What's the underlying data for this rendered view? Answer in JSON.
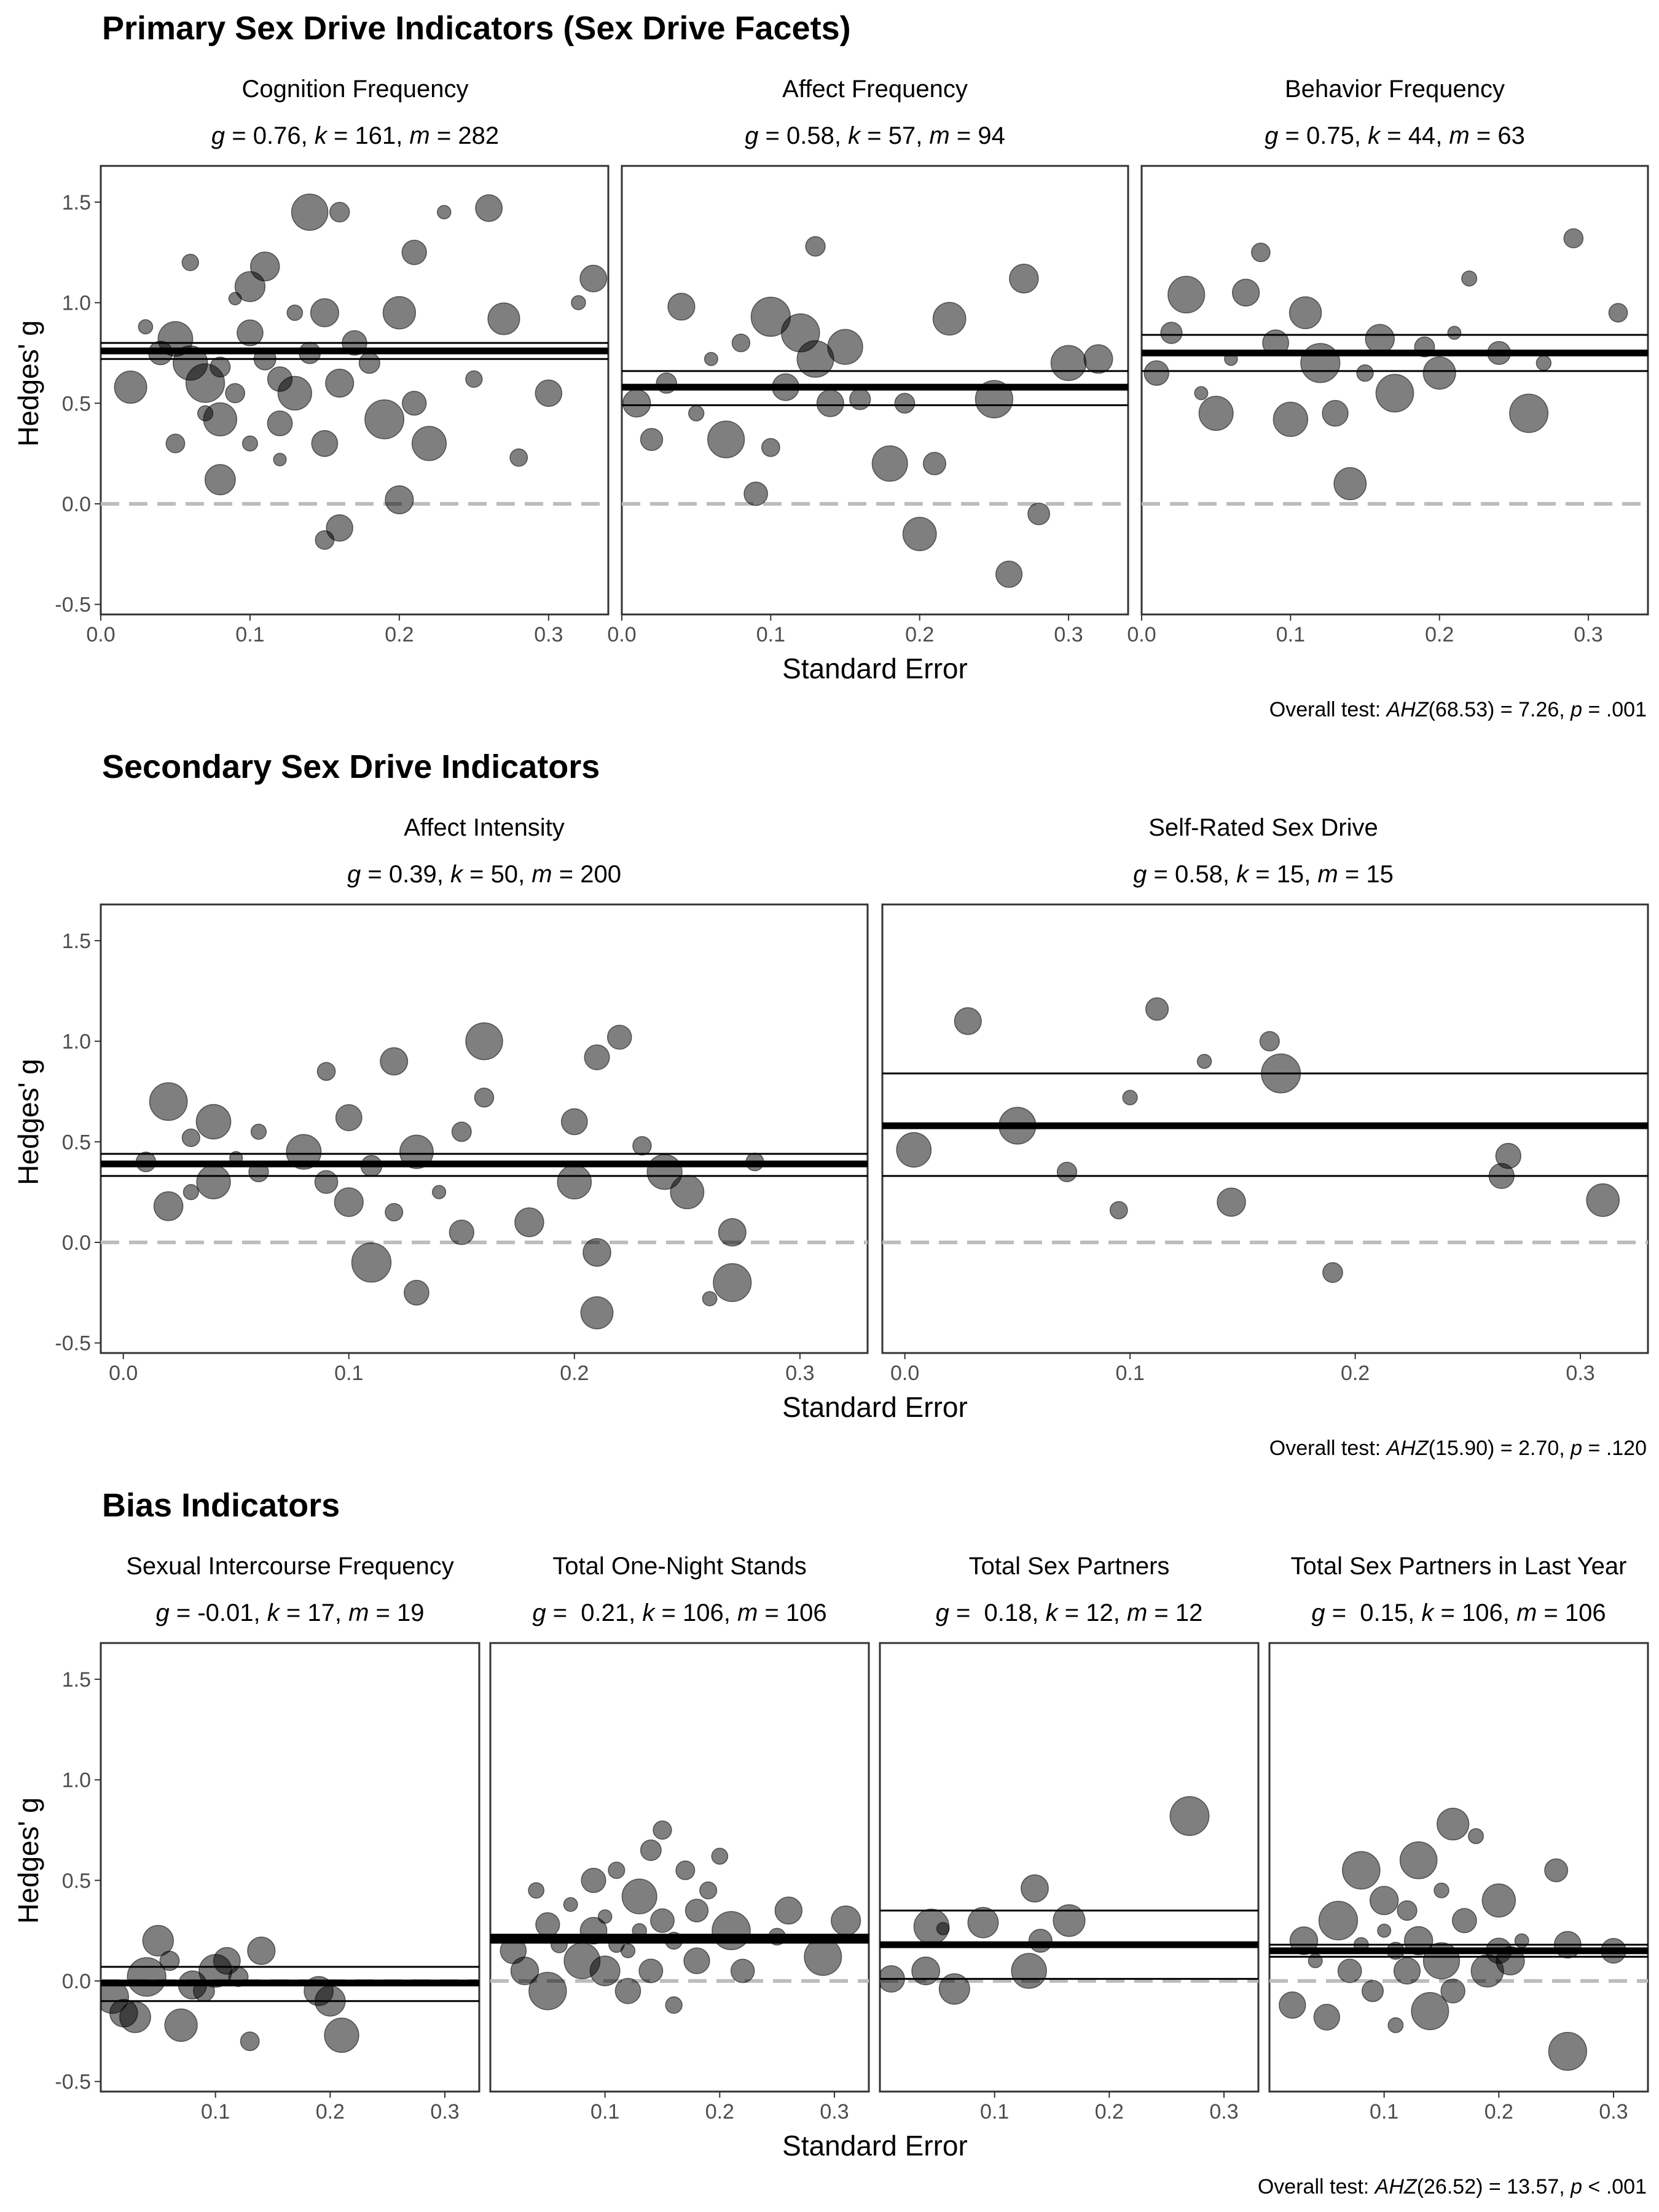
{
  "sections": [
    {
      "title": "Primary Sex Drive Indicators (Sex Drive Facets)",
      "xlabel": "Standard Error",
      "ylabel": "Hedges' g",
      "overall_test": {
        "prefix": "Overall test: ",
        "stat": "AHZ",
        "rest": "(68.53) = 7.26, ",
        "p": "p",
        "ptext": " = .001"
      },
      "x_ticks": [
        "0.0",
        "0.1",
        "0.2",
        "0.3"
      ],
      "panels": [
        {
          "title": "Cognition Frequency",
          "stats": {
            "g": "0.76",
            "k": "161",
            "m": "282"
          }
        },
        {
          "title": "Affect Frequency",
          "stats": {
            "g": "0.58",
            "k": "57",
            "m": "94"
          }
        },
        {
          "title": "Behavior Frequency",
          "stats": {
            "g": "0.75",
            "k": "44",
            "m": "63"
          }
        }
      ]
    },
    {
      "title": "Secondary Sex Drive Indicators",
      "xlabel": "Standard Error",
      "ylabel": "Hedges' g",
      "overall_test": {
        "prefix": "Overall test: ",
        "stat": "AHZ",
        "rest": "(15.90) = 2.70, ",
        "p": "p",
        "ptext": " = .120"
      },
      "x_ticks": [
        "0.0",
        "0.1",
        "0.2",
        "0.3"
      ],
      "panels": [
        {
          "title": "Affect Intensity",
          "stats": {
            "g": "0.39",
            "k": "50",
            "m": "200"
          }
        },
        {
          "title": "Self-Rated Sex Drive",
          "stats": {
            "g": "0.58",
            "k": "15",
            "m": "15"
          }
        }
      ]
    },
    {
      "title": "Bias Indicators",
      "xlabel": "Standard Error",
      "ylabel": "Hedges' g",
      "overall_test": {
        "prefix": "Overall test: ",
        "stat": "AHZ",
        "rest": "(26.52) = 13.57, ",
        "p": "p",
        "ptext": " < .001"
      },
      "x_ticks": [
        "0.1",
        "0.2",
        "0.3"
      ],
      "panels": [
        {
          "title": "Sexual Intercourse Frequency",
          "stats": {
            "g": "-0.01",
            "k": "17",
            "m": "19"
          }
        },
        {
          "title": "Total One-Night Stands",
          "stats": {
            "g": " 0.21",
            "k": "106",
            "m": "106"
          }
        },
        {
          "title": "Total Sex Partners",
          "stats": {
            "g": " 0.18",
            "k": "12",
            "m": "12"
          }
        },
        {
          "title": "Total Sex Partners in Last Year",
          "stats": {
            "g": " 0.15",
            "k": "106",
            "m": "106"
          }
        }
      ]
    }
  ],
  "y_ticks": [
    "-0.5",
    "0.0",
    "0.5",
    "1.0",
    "1.5"
  ],
  "colors": {
    "point": "#000000",
    "zero_line": "#bdbdbd",
    "frame": "#333333"
  },
  "chart_data": [
    {
      "type": "scatter",
      "title": "Cognition Frequency",
      "xlabel": "Standard Error",
      "ylabel": "Hedges' g",
      "xlim": [
        0,
        0.34
      ],
      "ylim": [
        -0.55,
        1.68
      ],
      "estimate": 0.76,
      "ci": [
        0.72,
        0.8
      ],
      "reference_line": 0,
      "points": [
        [
          0.02,
          0.58
        ],
        [
          0.03,
          0.88
        ],
        [
          0.04,
          0.75
        ],
        [
          0.05,
          0.82
        ],
        [
          0.06,
          1.2
        ],
        [
          0.06,
          0.7
        ],
        [
          0.07,
          0.45
        ],
        [
          0.07,
          0.6
        ],
        [
          0.08,
          0.68
        ],
        [
          0.08,
          0.42
        ],
        [
          0.09,
          1.02
        ],
        [
          0.09,
          0.55
        ],
        [
          0.1,
          1.08
        ],
        [
          0.1,
          0.85
        ],
        [
          0.1,
          0.3
        ],
        [
          0.11,
          0.72
        ],
        [
          0.11,
          1.18
        ],
        [
          0.12,
          0.62
        ],
        [
          0.12,
          0.4
        ],
        [
          0.13,
          0.95
        ],
        [
          0.13,
          0.55
        ],
        [
          0.14,
          1.45
        ],
        [
          0.14,
          0.75
        ],
        [
          0.15,
          0.3
        ],
        [
          0.15,
          0.95
        ],
        [
          0.16,
          1.45
        ],
        [
          0.16,
          0.6
        ],
        [
          0.16,
          -0.12
        ],
        [
          0.17,
          0.8
        ],
        [
          0.18,
          0.7
        ],
        [
          0.19,
          0.42
        ],
        [
          0.2,
          0.95
        ],
        [
          0.2,
          0.02
        ],
        [
          0.21,
          1.25
        ],
        [
          0.21,
          0.5
        ],
        [
          0.22,
          0.3
        ],
        [
          0.23,
          1.45
        ],
        [
          0.25,
          0.62
        ],
        [
          0.26,
          1.47
        ],
        [
          0.27,
          0.92
        ],
        [
          0.28,
          0.23
        ],
        [
          0.3,
          0.55
        ],
        [
          0.32,
          1.0
        ],
        [
          0.33,
          1.12
        ],
        [
          0.05,
          0.3
        ],
        [
          0.08,
          0.12
        ],
        [
          0.12,
          0.22
        ],
        [
          0.15,
          -0.18
        ]
      ]
    },
    {
      "type": "scatter",
      "title": "Affect Frequency",
      "xlabel": "Standard Error",
      "ylabel": "Hedges' g",
      "xlim": [
        0,
        0.34
      ],
      "ylim": [
        -0.55,
        1.68
      ],
      "estimate": 0.58,
      "ci": [
        0.49,
        0.66
      ],
      "reference_line": 0,
      "points": [
        [
          0.01,
          0.5
        ],
        [
          0.02,
          0.32
        ],
        [
          0.03,
          0.6
        ],
        [
          0.04,
          0.98
        ],
        [
          0.05,
          0.45
        ],
        [
          0.06,
          0.72
        ],
        [
          0.07,
          0.32
        ],
        [
          0.08,
          0.8
        ],
        [
          0.09,
          0.05
        ],
        [
          0.1,
          0.93
        ],
        [
          0.1,
          0.28
        ],
        [
          0.11,
          0.58
        ],
        [
          0.12,
          0.85
        ],
        [
          0.13,
          0.72
        ],
        [
          0.13,
          1.28
        ],
        [
          0.14,
          0.5
        ],
        [
          0.15,
          0.78
        ],
        [
          0.16,
          0.52
        ],
        [
          0.18,
          0.2
        ],
        [
          0.19,
          0.5
        ],
        [
          0.2,
          -0.15
        ],
        [
          0.21,
          0.2
        ],
        [
          0.22,
          0.92
        ],
        [
          0.25,
          0.52
        ],
        [
          0.26,
          -0.35
        ],
        [
          0.27,
          1.12
        ],
        [
          0.28,
          -0.05
        ],
        [
          0.3,
          0.7
        ],
        [
          0.32,
          0.72
        ]
      ]
    },
    {
      "type": "scatter",
      "title": "Behavior Frequency",
      "xlabel": "Standard Error",
      "ylabel": "Hedges' g",
      "xlim": [
        0,
        0.34
      ],
      "ylim": [
        -0.55,
        1.68
      ],
      "estimate": 0.75,
      "ci": [
        0.66,
        0.84
      ],
      "reference_line": 0,
      "points": [
        [
          0.01,
          0.65
        ],
        [
          0.02,
          0.85
        ],
        [
          0.03,
          1.04
        ],
        [
          0.04,
          0.55
        ],
        [
          0.05,
          0.45
        ],
        [
          0.06,
          0.72
        ],
        [
          0.07,
          1.05
        ],
        [
          0.08,
          1.25
        ],
        [
          0.09,
          0.8
        ],
        [
          0.1,
          0.42
        ],
        [
          0.11,
          0.95
        ],
        [
          0.12,
          0.7
        ],
        [
          0.13,
          0.45
        ],
        [
          0.14,
          0.1
        ],
        [
          0.15,
          0.65
        ],
        [
          0.16,
          0.82
        ],
        [
          0.17,
          0.55
        ],
        [
          0.19,
          0.78
        ],
        [
          0.2,
          0.65
        ],
        [
          0.21,
          0.85
        ],
        [
          0.22,
          1.12
        ],
        [
          0.24,
          0.75
        ],
        [
          0.26,
          0.45
        ],
        [
          0.27,
          0.7
        ],
        [
          0.29,
          1.32
        ],
        [
          0.32,
          0.95
        ]
      ]
    },
    {
      "type": "scatter",
      "title": "Affect Intensity",
      "xlabel": "Standard Error",
      "ylabel": "Hedges' g",
      "xlim": [
        -0.01,
        0.33
      ],
      "ylim": [
        -0.55,
        1.68
      ],
      "estimate": 0.39,
      "ci": [
        0.33,
        0.44
      ],
      "reference_line": 0,
      "points": [
        [
          0.01,
          0.4
        ],
        [
          0.02,
          0.7
        ],
        [
          0.02,
          0.18
        ],
        [
          0.03,
          0.25
        ],
        [
          0.03,
          0.52
        ],
        [
          0.04,
          0.6
        ],
        [
          0.04,
          0.3
        ],
        [
          0.05,
          0.42
        ],
        [
          0.06,
          0.55
        ],
        [
          0.06,
          0.35
        ],
        [
          0.08,
          0.45
        ],
        [
          0.09,
          0.85
        ],
        [
          0.09,
          0.3
        ],
        [
          0.1,
          0.2
        ],
        [
          0.1,
          0.62
        ],
        [
          0.11,
          0.38
        ],
        [
          0.11,
          -0.1
        ],
        [
          0.12,
          0.9
        ],
        [
          0.12,
          0.15
        ],
        [
          0.13,
          0.45
        ],
        [
          0.13,
          -0.25
        ],
        [
          0.14,
          0.25
        ],
        [
          0.15,
          0.55
        ],
        [
          0.15,
          0.05
        ],
        [
          0.16,
          0.72
        ],
        [
          0.16,
          1.0
        ],
        [
          0.18,
          0.1
        ],
        [
          0.2,
          0.6
        ],
        [
          0.2,
          0.3
        ],
        [
          0.21,
          0.92
        ],
        [
          0.21,
          -0.05
        ],
        [
          0.21,
          -0.35
        ],
        [
          0.22,
          1.02
        ],
        [
          0.23,
          0.48
        ],
        [
          0.24,
          0.35
        ],
        [
          0.25,
          0.25
        ],
        [
          0.26,
          -0.28
        ],
        [
          0.27,
          0.05
        ],
        [
          0.27,
          -0.2
        ],
        [
          0.28,
          0.4
        ]
      ]
    },
    {
      "type": "scatter",
      "title": "Self-Rated Sex Drive",
      "xlabel": "Standard Error",
      "ylabel": "Hedges' g",
      "xlim": [
        -0.01,
        0.33
      ],
      "ylim": [
        -0.55,
        1.68
      ],
      "estimate": 0.58,
      "ci": [
        0.33,
        0.84
      ],
      "reference_line": 0,
      "points": [
        [
          0.004,
          0.46
        ],
        [
          0.028,
          1.1
        ],
        [
          0.05,
          0.58
        ],
        [
          0.072,
          0.35
        ],
        [
          0.095,
          0.16
        ],
        [
          0.1,
          0.72
        ],
        [
          0.112,
          1.16
        ],
        [
          0.133,
          0.9
        ],
        [
          0.145,
          0.2
        ],
        [
          0.162,
          1.0
        ],
        [
          0.167,
          0.84
        ],
        [
          0.19,
          -0.15
        ],
        [
          0.265,
          0.33
        ],
        [
          0.268,
          0.43
        ],
        [
          0.31,
          0.21
        ]
      ]
    },
    {
      "type": "scatter",
      "title": "Sexual Intercourse Frequency",
      "xlabel": "Standard Error",
      "ylabel": "Hedges' g",
      "xlim": [
        0,
        0.33
      ],
      "ylim": [
        -0.55,
        1.68
      ],
      "estimate": -0.01,
      "ci": [
        -0.1,
        0.07
      ],
      "reference_line": 0,
      "points": [
        [
          0.01,
          -0.08
        ],
        [
          0.02,
          -0.16
        ],
        [
          0.03,
          -0.18
        ],
        [
          0.04,
          0.02
        ],
        [
          0.05,
          0.2
        ],
        [
          0.06,
          0.1
        ],
        [
          0.07,
          -0.22
        ],
        [
          0.08,
          -0.02
        ],
        [
          0.09,
          -0.05
        ],
        [
          0.1,
          0.05
        ],
        [
          0.11,
          0.1
        ],
        [
          0.12,
          0.02
        ],
        [
          0.13,
          -0.3
        ],
        [
          0.14,
          0.15
        ],
        [
          0.19,
          -0.05
        ],
        [
          0.2,
          -0.1
        ],
        [
          0.21,
          -0.27
        ]
      ]
    },
    {
      "type": "scatter",
      "title": "Total One-Night Stands",
      "xlabel": "Standard Error",
      "ylabel": "Hedges' g",
      "xlim": [
        0,
        0.33
      ],
      "ylim": [
        -0.55,
        1.68
      ],
      "estimate": 0.21,
      "ci": [
        0.19,
        0.23
      ],
      "reference_line": 0,
      "points": [
        [
          0.02,
          0.15
        ],
        [
          0.03,
          0.05
        ],
        [
          0.04,
          0.45
        ],
        [
          0.05,
          0.28
        ],
        [
          0.05,
          -0.05
        ],
        [
          0.06,
          0.18
        ],
        [
          0.07,
          0.38
        ],
        [
          0.08,
          0.1
        ],
        [
          0.09,
          0.25
        ],
        [
          0.09,
          0.5
        ],
        [
          0.1,
          0.05
        ],
        [
          0.1,
          0.32
        ],
        [
          0.11,
          0.18
        ],
        [
          0.11,
          0.55
        ],
        [
          0.12,
          0.15
        ],
        [
          0.12,
          -0.05
        ],
        [
          0.13,
          0.42
        ],
        [
          0.13,
          0.25
        ],
        [
          0.14,
          0.65
        ],
        [
          0.14,
          0.05
        ],
        [
          0.15,
          0.3
        ],
        [
          0.15,
          0.75
        ],
        [
          0.16,
          0.2
        ],
        [
          0.16,
          -0.12
        ],
        [
          0.17,
          0.55
        ],
        [
          0.18,
          0.35
        ],
        [
          0.18,
          0.1
        ],
        [
          0.19,
          0.45
        ],
        [
          0.2,
          0.62
        ],
        [
          0.21,
          0.25
        ],
        [
          0.22,
          0.05
        ],
        [
          0.25,
          0.22
        ],
        [
          0.26,
          0.35
        ],
        [
          0.29,
          0.12
        ],
        [
          0.31,
          0.3
        ]
      ]
    },
    {
      "type": "scatter",
      "title": "Total Sex Partners",
      "xlabel": "Standard Error",
      "ylabel": "Hedges' g",
      "xlim": [
        0,
        0.33
      ],
      "ylim": [
        -0.55,
        1.68
      ],
      "estimate": 0.18,
      "ci": [
        0.01,
        0.35
      ],
      "reference_line": 0,
      "points": [
        [
          0.01,
          0.01
        ],
        [
          0.04,
          0.05
        ],
        [
          0.045,
          0.27
        ],
        [
          0.055,
          0.26
        ],
        [
          0.065,
          -0.04
        ],
        [
          0.09,
          0.29
        ],
        [
          0.13,
          0.05
        ],
        [
          0.135,
          0.46
        ],
        [
          0.14,
          0.2
        ],
        [
          0.165,
          0.3
        ],
        [
          0.27,
          0.82
        ]
      ]
    },
    {
      "type": "scatter",
      "title": "Total Sex Partners in Last Year",
      "xlabel": "Standard Error",
      "ylabel": "Hedges' g",
      "xlim": [
        0,
        0.33
      ],
      "ylim": [
        -0.55,
        1.68
      ],
      "estimate": 0.15,
      "ci": [
        0.12,
        0.18
      ],
      "reference_line": 0,
      "points": [
        [
          0.02,
          -0.12
        ],
        [
          0.03,
          0.2
        ],
        [
          0.04,
          0.1
        ],
        [
          0.05,
          -0.18
        ],
        [
          0.06,
          0.3
        ],
        [
          0.07,
          0.05
        ],
        [
          0.08,
          0.55
        ],
        [
          0.08,
          0.18
        ],
        [
          0.09,
          -0.05
        ],
        [
          0.1,
          0.25
        ],
        [
          0.1,
          0.4
        ],
        [
          0.11,
          0.15
        ],
        [
          0.11,
          -0.22
        ],
        [
          0.12,
          0.35
        ],
        [
          0.12,
          0.05
        ],
        [
          0.13,
          0.6
        ],
        [
          0.13,
          0.2
        ],
        [
          0.14,
          -0.15
        ],
        [
          0.15,
          0.45
        ],
        [
          0.15,
          0.1
        ],
        [
          0.16,
          0.78
        ],
        [
          0.16,
          -0.05
        ],
        [
          0.17,
          0.3
        ],
        [
          0.18,
          0.72
        ],
        [
          0.19,
          0.05
        ],
        [
          0.2,
          0.4
        ],
        [
          0.2,
          0.15
        ],
        [
          0.21,
          0.1
        ],
        [
          0.22,
          0.2
        ],
        [
          0.25,
          0.55
        ],
        [
          0.26,
          -0.35
        ],
        [
          0.26,
          0.18
        ],
        [
          0.3,
          0.15
        ]
      ]
    }
  ]
}
